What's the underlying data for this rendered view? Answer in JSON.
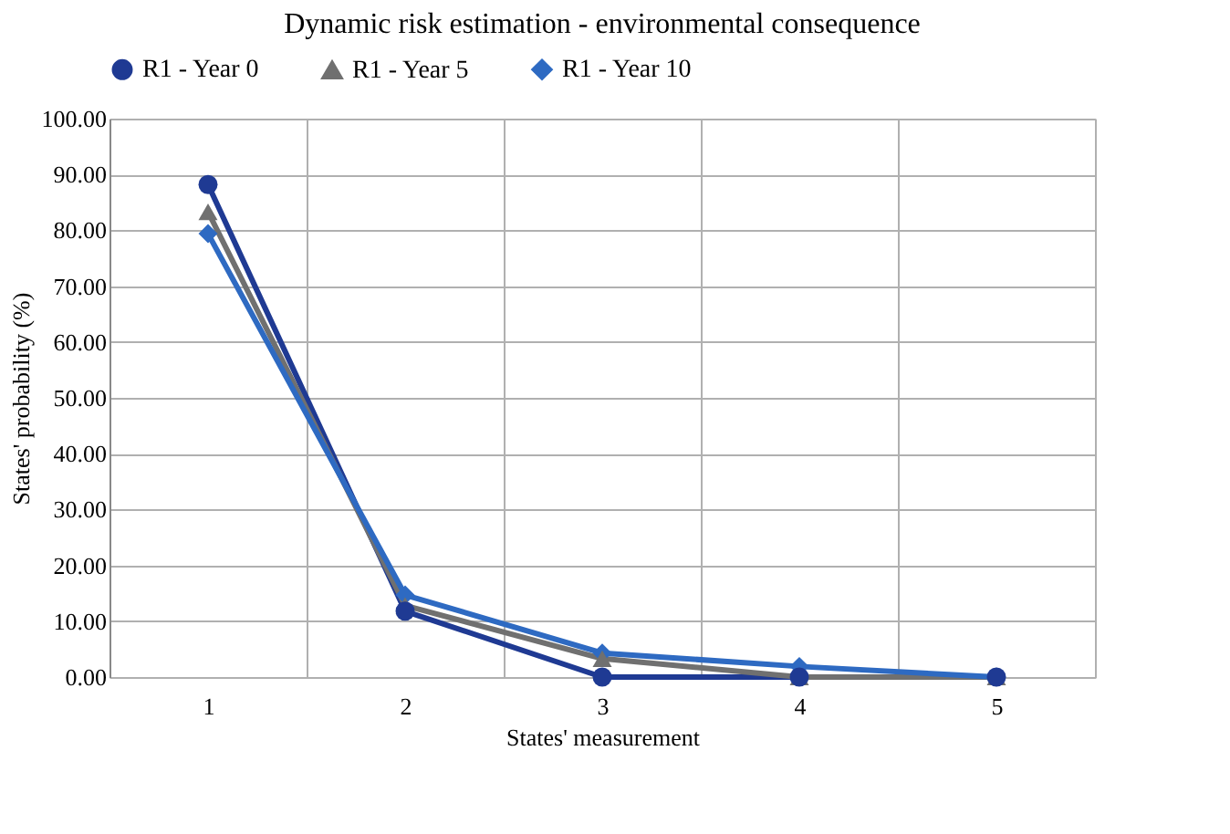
{
  "chart_data": {
    "type": "line",
    "title": "Dynamic risk estimation - environmental consequence",
    "xlabel": "States' measurement",
    "ylabel": "States' probability (%)",
    "categories": [
      "1",
      "2",
      "3",
      "4",
      "5"
    ],
    "series": [
      {
        "name": "R1 - Year 0",
        "color": "#1f3a93",
        "marker": "circle",
        "values": [
          88.2,
          11.8,
          0,
          0,
          0
        ]
      },
      {
        "name": "R1 - Year 5",
        "color": "#707070",
        "marker": "triangle",
        "values": [
          83.3,
          12.8,
          3.3,
          0,
          0
        ]
      },
      {
        "name": "R1 - Year 10",
        "color": "#2e6ac2",
        "marker": "diamond",
        "values": [
          79.4,
          14.7,
          4.3,
          1.9,
          0
        ]
      }
    ],
    "ylim": [
      0,
      100
    ],
    "yticks": [
      {
        "value": 0,
        "label": "0.00"
      },
      {
        "value": 10,
        "label": "10.00"
      },
      {
        "value": 20,
        "label": "20.00"
      },
      {
        "value": 30,
        "label": "30.00"
      },
      {
        "value": 40,
        "label": "40.00"
      },
      {
        "value": 50,
        "label": "50.00"
      },
      {
        "value": 60,
        "label": "60.00"
      },
      {
        "value": 70,
        "label": "70.00"
      },
      {
        "value": 80,
        "label": "80.00"
      },
      {
        "value": 90,
        "label": "90.00"
      },
      {
        "value": 100,
        "label": "100.00"
      }
    ],
    "grid": true,
    "legend": "top",
    "line_style": "solid"
  }
}
